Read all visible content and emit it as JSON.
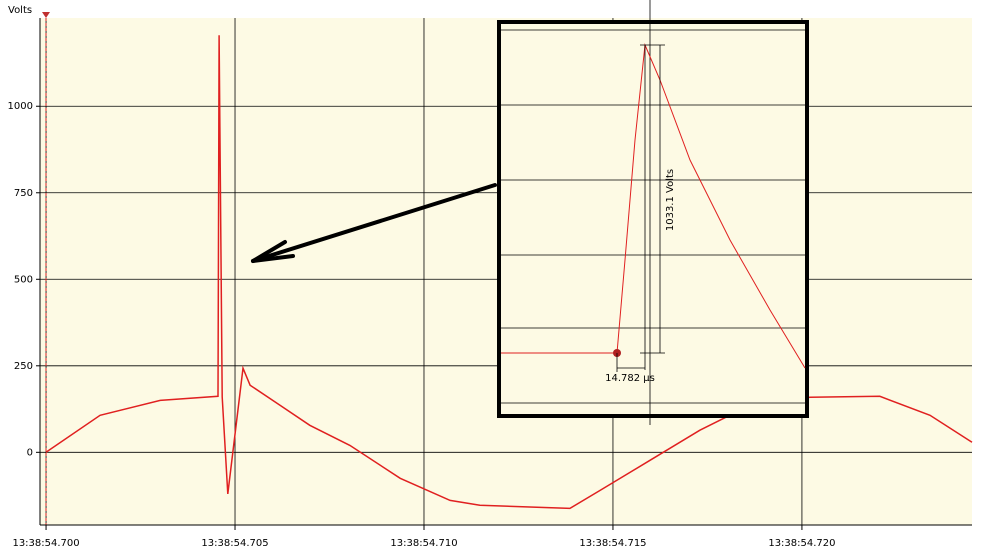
{
  "chart_data": {
    "type": "line",
    "y_label": "Volts",
    "x": [
      54.7,
      54.70143,
      54.70302,
      54.70455,
      54.70458,
      54.70466,
      54.70481,
      54.70521,
      54.7054,
      54.70619,
      54.70698,
      54.70804,
      54.70937,
      54.71069,
      54.71148,
      54.71386,
      54.71466,
      54.71598,
      54.7173,
      54.71862,
      54.72021,
      54.72206,
      54.72339,
      54.7245
    ],
    "values": [
      0,
      107,
      150,
      162,
      1205,
      160,
      -120,
      243,
      194,
      136,
      78,
      20,
      -75,
      -139,
      -153,
      -162,
      -110,
      -23,
      64,
      136,
      159,
      162,
      107,
      29
    ],
    "color": "#e02020",
    "xlim": [
      54.69984,
      54.7245
    ],
    "xticks": [
      {
        "value": 54.7,
        "label": "13:38:54.700"
      },
      {
        "value": 54.705,
        "label": "13:38:54.705"
      },
      {
        "value": 54.71,
        "label": "13:38:54.710"
      },
      {
        "value": 54.715,
        "label": "13:38:54.715"
      },
      {
        "value": 54.72,
        "label": "13:38:54.720"
      }
    ],
    "ylim": [
      -210,
      1255
    ],
    "yticks": [
      0,
      250,
      500,
      750,
      1000
    ],
    "grid": true,
    "annotations": [
      "1033.1 Volts",
      "14.782 µs"
    ]
  }
}
